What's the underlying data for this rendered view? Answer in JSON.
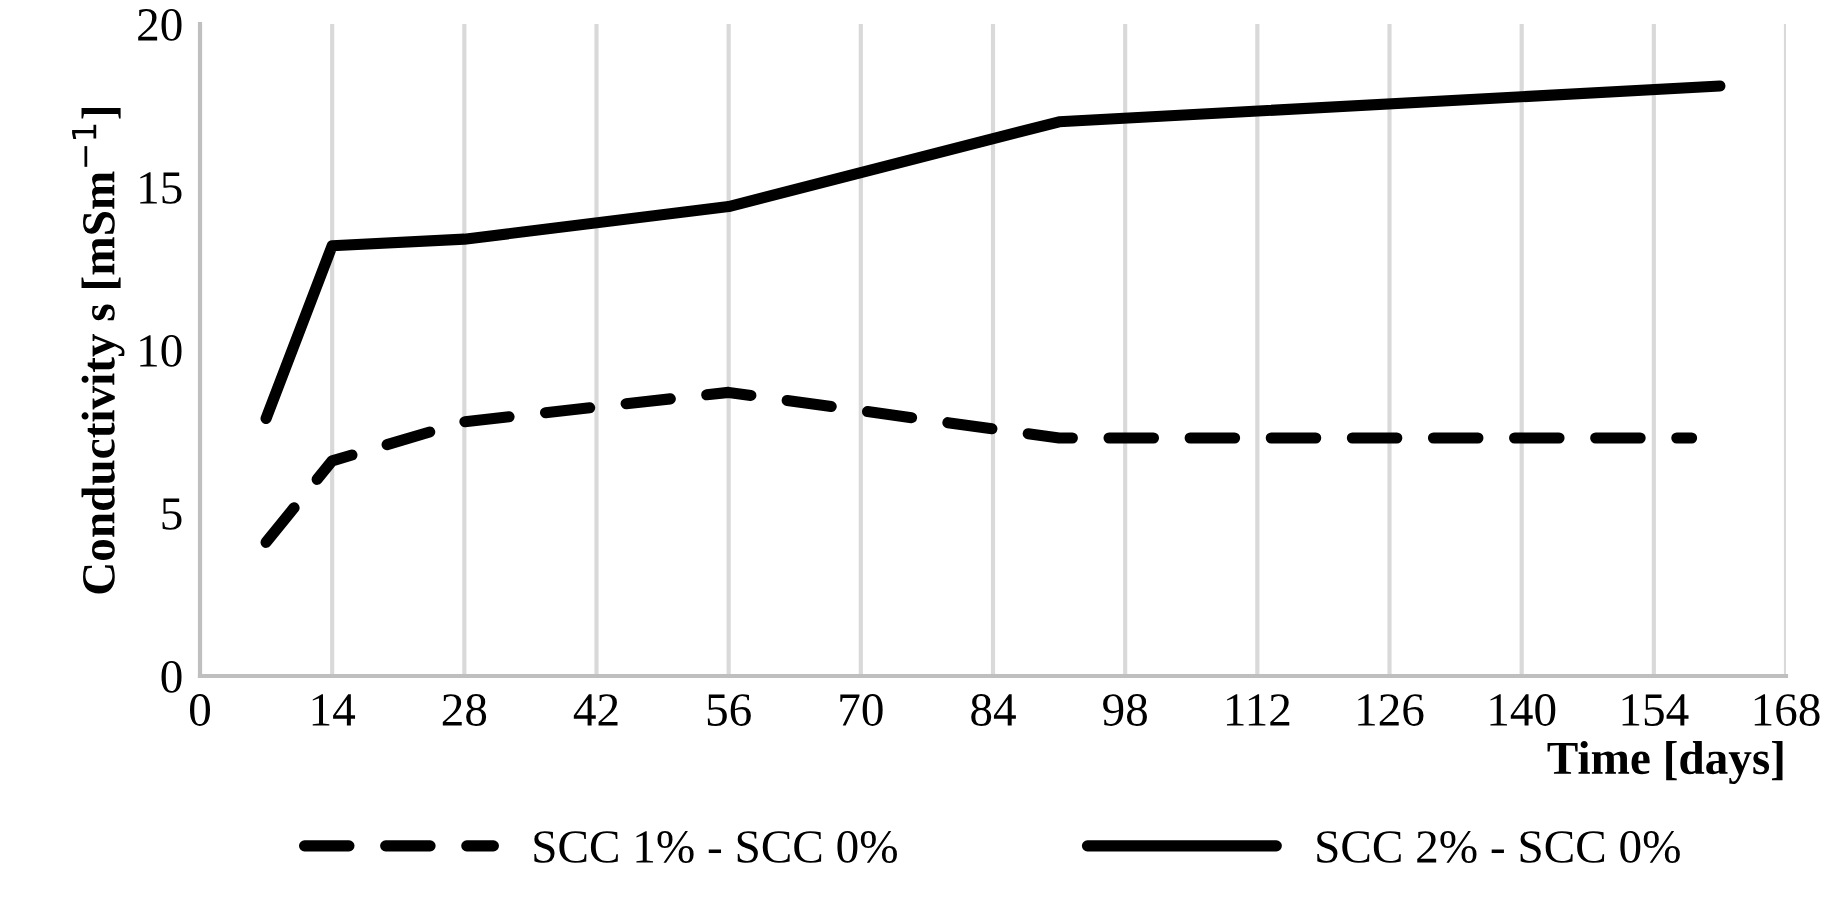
{
  "chart_data": {
    "type": "line",
    "xlabel": "Time [days]",
    "ylabel": "Conductivity s [mSm$^{−1}$]",
    "xlim": [
      0,
      168
    ],
    "xticks": [
      0,
      14,
      28,
      42,
      56,
      70,
      84,
      98,
      112,
      126,
      140,
      154,
      168
    ],
    "ylim": [
      0,
      20
    ],
    "yticks": [
      0,
      5,
      10,
      15,
      20
    ],
    "grid": "x",
    "legend": "bottom",
    "marker": "none",
    "series": [
      {
        "name": "SCC 1% - SCC 0%",
        "color": "#000000",
        "line_style": "dashed",
        "x": [
          7,
          14,
          28,
          56,
          91,
          158
        ],
        "values": [
          4.1,
          6.6,
          7.8,
          8.7,
          7.3,
          7.3
        ]
      },
      {
        "name": "SCC 2% - SCC 0%",
        "color": "#000000",
        "line_style": "solid",
        "x": [
          7,
          14,
          28,
          56,
          91,
          161
        ],
        "values": [
          7.9,
          13.2,
          13.4,
          14.4,
          17.0,
          18.1
        ]
      }
    ]
  }
}
